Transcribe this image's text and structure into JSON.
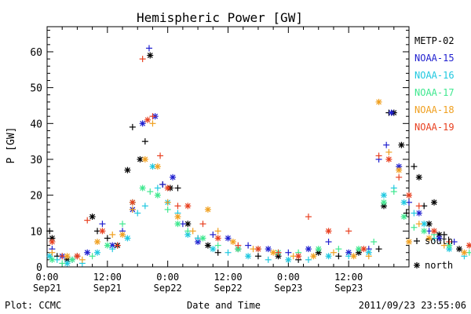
{
  "chart_data": {
    "type": "scatter",
    "title": "Hemispheric Power [GW]",
    "ylabel": "P [GW]",
    "xlabel": "Date and Time",
    "ylim": [
      0,
      67
    ],
    "yticks": [
      0,
      10,
      20,
      30,
      40,
      50,
      60
    ],
    "xlim": [
      "2011-09-21 00:00",
      "2011-09-23 23:00"
    ],
    "xticks": [
      {
        "time": "0:00",
        "date": "Sep21"
      },
      {
        "time": "12:00",
        "date": "Sep21"
      },
      {
        "time": "0:00",
        "date": "Sep22"
      },
      {
        "time": "12:00",
        "date": "Sep22"
      },
      {
        "time": "0:00",
        "date": "Sep23"
      },
      {
        "time": "12:00",
        "date": "Sep23"
      }
    ],
    "footer_left": "Plot: CCMC",
    "footer_right": "2011/09/23 23:55:06",
    "markers": [
      {
        "symbol": "+",
        "label": "south"
      },
      {
        "symbol": "*",
        "label": "north"
      }
    ],
    "series": [
      {
        "name": "METP-02",
        "color": "#000000",
        "points": [
          [
            0.5,
            10,
            "+"
          ],
          [
            1,
            8,
            "*"
          ],
          [
            2,
            3,
            "+"
          ],
          [
            4,
            2,
            "*"
          ],
          [
            6,
            3,
            "+"
          ],
          [
            9,
            14,
            "*"
          ],
          [
            10,
            10,
            "+"
          ],
          [
            12,
            8,
            "+"
          ],
          [
            14,
            6,
            "*"
          ],
          [
            16,
            27,
            "*"
          ],
          [
            17,
            39,
            "+"
          ],
          [
            18.5,
            30,
            "*"
          ],
          [
            19.5,
            35,
            "+"
          ],
          [
            20.5,
            59,
            "*"
          ],
          [
            23,
            23,
            "+"
          ],
          [
            24.5,
            22,
            "*"
          ],
          [
            26,
            22,
            "+"
          ],
          [
            28,
            12,
            "*"
          ],
          [
            30,
            8,
            "+"
          ],
          [
            32,
            6,
            "*"
          ],
          [
            34,
            4,
            "+"
          ],
          [
            38,
            5,
            "*"
          ],
          [
            42,
            3,
            "+"
          ],
          [
            46,
            3,
            "*"
          ],
          [
            50,
            2,
            "+"
          ],
          [
            54,
            4,
            "*"
          ],
          [
            58,
            3,
            "+"
          ],
          [
            62,
            4,
            "*"
          ],
          [
            66,
            5,
            "+"
          ],
          [
            67,
            17,
            "*"
          ],
          [
            68,
            43,
            "+"
          ],
          [
            69,
            43,
            "*"
          ],
          [
            70.5,
            34,
            "*"
          ],
          [
            71.5,
            15,
            "+"
          ],
          [
            73,
            28,
            "+"
          ],
          [
            74,
            25,
            "*"
          ],
          [
            75,
            17,
            "+"
          ],
          [
            76,
            12,
            "*"
          ],
          [
            77,
            18,
            "*"
          ],
          [
            78,
            9,
            "*"
          ],
          [
            79,
            9,
            "+"
          ],
          [
            82,
            5,
            "*"
          ],
          [
            86,
            3,
            "+"
          ],
          [
            90,
            3,
            "*"
          ],
          [
            94,
            4,
            "+"
          ],
          [
            98,
            4,
            "*"
          ],
          [
            102,
            6,
            "+"
          ],
          [
            104,
            3,
            "*"
          ],
          [
            108,
            4,
            "+"
          ],
          [
            110,
            5,
            "*"
          ]
        ]
      },
      {
        "name": "NOAA-15",
        "color": "#1f1fcf",
        "points": [
          [
            1,
            5,
            "+"
          ],
          [
            3,
            3,
            "*"
          ],
          [
            5,
            2,
            "+"
          ],
          [
            8,
            4,
            "*"
          ],
          [
            11,
            12,
            "+"
          ],
          [
            13,
            6,
            "*"
          ],
          [
            15,
            10,
            "+"
          ],
          [
            17,
            16,
            "*"
          ],
          [
            19,
            40,
            "*"
          ],
          [
            20.3,
            61,
            "+"
          ],
          [
            21.5,
            42,
            "*"
          ],
          [
            23,
            23,
            "+"
          ],
          [
            25,
            25,
            "*"
          ],
          [
            27,
            12,
            "+"
          ],
          [
            30,
            7,
            "*"
          ],
          [
            33,
            9,
            "+"
          ],
          [
            36,
            8,
            "*"
          ],
          [
            40,
            6,
            "+"
          ],
          [
            44,
            5,
            "*"
          ],
          [
            48,
            4,
            "+"
          ],
          [
            52,
            5,
            "*"
          ],
          [
            56,
            7,
            "+"
          ],
          [
            60,
            4,
            "*"
          ],
          [
            64,
            5,
            "+"
          ],
          [
            66,
            30,
            "+"
          ],
          [
            67.5,
            34,
            "+"
          ],
          [
            68.5,
            43,
            "*"
          ],
          [
            70,
            28,
            "*"
          ],
          [
            72,
            18,
            "+"
          ],
          [
            74,
            15,
            "*"
          ],
          [
            76,
            10,
            "+"
          ],
          [
            78,
            8,
            "*"
          ],
          [
            81,
            7,
            "+"
          ],
          [
            85,
            5,
            "*"
          ],
          [
            90,
            4,
            "+"
          ],
          [
            95,
            4,
            "*"
          ],
          [
            100,
            5,
            "+"
          ],
          [
            105,
            5,
            "*"
          ],
          [
            109,
            6,
            "+"
          ]
        ]
      },
      {
        "name": "NOAA-16",
        "color": "#1fc8e0",
        "points": [
          [
            0.5,
            3,
            "*"
          ],
          [
            2,
            2,
            "+"
          ],
          [
            4,
            1,
            "*"
          ],
          [
            7,
            1,
            "+"
          ],
          [
            10,
            4,
            "*"
          ],
          [
            13,
            5,
            "+"
          ],
          [
            16,
            8,
            "*"
          ],
          [
            18,
            15,
            "+"
          ],
          [
            19.5,
            17,
            "+"
          ],
          [
            21,
            28,
            "*"
          ],
          [
            22,
            22,
            "+"
          ],
          [
            24,
            18,
            "*"
          ],
          [
            26,
            15,
            "+"
          ],
          [
            28,
            9,
            "*"
          ],
          [
            30,
            8,
            "+"
          ],
          [
            33,
            5,
            "*"
          ],
          [
            36,
            4,
            "+"
          ],
          [
            40,
            3,
            "*"
          ],
          [
            44,
            2,
            "+"
          ],
          [
            48,
            2,
            "*"
          ],
          [
            52,
            2,
            "+"
          ],
          [
            56,
            3,
            "*"
          ],
          [
            60,
            3,
            "+"
          ],
          [
            64,
            4,
            "*"
          ],
          [
            67,
            20,
            "*"
          ],
          [
            69,
            22,
            "+"
          ],
          [
            71,
            18,
            "*"
          ],
          [
            73,
            15,
            "+"
          ],
          [
            75,
            12,
            "*"
          ],
          [
            77,
            8,
            "+"
          ],
          [
            80,
            5,
            "*"
          ],
          [
            83,
            3,
            "+"
          ],
          [
            87,
            2,
            "*"
          ],
          [
            91,
            2,
            "+"
          ],
          [
            95,
            2,
            "*"
          ],
          [
            99,
            2,
            "+"
          ],
          [
            103,
            3,
            "*"
          ],
          [
            106,
            3,
            "+"
          ],
          [
            109,
            5,
            "*"
          ]
        ]
      },
      {
        "name": "NOAA-17",
        "color": "#3fe88f",
        "points": [
          [
            1,
            2,
            "*"
          ],
          [
            3,
            1,
            "+"
          ],
          [
            5,
            2,
            "*"
          ],
          [
            9,
            3,
            "+"
          ],
          [
            12,
            6,
            "*"
          ],
          [
            15,
            12,
            "+"
          ],
          [
            17,
            18,
            "*"
          ],
          [
            19,
            22,
            "*"
          ],
          [
            20.5,
            21,
            "+"
          ],
          [
            22,
            20,
            "*"
          ],
          [
            24,
            16,
            "+"
          ],
          [
            26,
            12,
            "*"
          ],
          [
            28,
            10,
            "+"
          ],
          [
            31,
            8,
            "*"
          ],
          [
            34,
            6,
            "+"
          ],
          [
            38,
            5,
            "*"
          ],
          [
            42,
            5,
            "+"
          ],
          [
            46,
            4,
            "*"
          ],
          [
            50,
            4,
            "+"
          ],
          [
            54,
            5,
            "*"
          ],
          [
            58,
            5,
            "+"
          ],
          [
            62,
            5,
            "*"
          ],
          [
            65,
            7,
            "+"
          ],
          [
            67,
            18,
            "*"
          ],
          [
            69,
            21,
            "+"
          ],
          [
            71,
            14,
            "*"
          ],
          [
            73,
            11,
            "+"
          ],
          [
            75,
            10,
            "*"
          ],
          [
            77,
            9,
            "+"
          ],
          [
            80,
            6,
            "*"
          ],
          [
            84,
            4,
            "+"
          ],
          [
            88,
            2,
            "*"
          ],
          [
            92,
            3,
            "+"
          ],
          [
            96,
            3,
            "*"
          ],
          [
            100,
            4,
            "+"
          ],
          [
            104,
            6,
            "*"
          ],
          [
            108,
            7,
            "+"
          ]
        ]
      },
      {
        "name": "NOAA-18",
        "color": "#f0a020",
        "points": [
          [
            1,
            4,
            "+"
          ],
          [
            4,
            3,
            "*"
          ],
          [
            7,
            2,
            "+"
          ],
          [
            10,
            7,
            "*"
          ],
          [
            13,
            9,
            "+"
          ],
          [
            15,
            9,
            "*"
          ],
          [
            17,
            16,
            "+"
          ],
          [
            19.5,
            30,
            "*"
          ],
          [
            21,
            40,
            "+"
          ],
          [
            22,
            28,
            "*"
          ],
          [
            24,
            18,
            "+"
          ],
          [
            26,
            14,
            "*"
          ],
          [
            29,
            10,
            "+"
          ],
          [
            32,
            16,
            "*"
          ],
          [
            34,
            10,
            "+"
          ],
          [
            37,
            7,
            "*"
          ],
          [
            41,
            5,
            "+"
          ],
          [
            45,
            4,
            "*"
          ],
          [
            49,
            3,
            "+"
          ],
          [
            53,
            3,
            "*"
          ],
          [
            57,
            4,
            "+"
          ],
          [
            61,
            3,
            "*"
          ],
          [
            64,
            3,
            "+"
          ],
          [
            66,
            46,
            "*"
          ],
          [
            68,
            32,
            "+"
          ],
          [
            70,
            27,
            "*"
          ],
          [
            72,
            7,
            "*"
          ],
          [
            74,
            12,
            "+"
          ],
          [
            76,
            8,
            "*"
          ],
          [
            79,
            6,
            "+"
          ],
          [
            83,
            4,
            "*"
          ],
          [
            87,
            4,
            "+"
          ],
          [
            91,
            3,
            "*"
          ],
          [
            95,
            3,
            "+"
          ],
          [
            99,
            4,
            "*"
          ],
          [
            103,
            4,
            "+"
          ],
          [
            107,
            5,
            "*"
          ]
        ]
      },
      {
        "name": "NOAA-19",
        "color": "#e84020",
        "points": [
          [
            1,
            7,
            "*"
          ],
          [
            3,
            3,
            "+"
          ],
          [
            6,
            3,
            "*"
          ],
          [
            8,
            13,
            "+"
          ],
          [
            11,
            10,
            "*"
          ],
          [
            14,
            6,
            "+"
          ],
          [
            17,
            18,
            "*"
          ],
          [
            19,
            58,
            "+"
          ],
          [
            20,
            41,
            "*"
          ],
          [
            21,
            42,
            "+"
          ],
          [
            22.5,
            31,
            "+"
          ],
          [
            24,
            22,
            "*"
          ],
          [
            26,
            17,
            "+"
          ],
          [
            28,
            17,
            "*"
          ],
          [
            31,
            12,
            "+"
          ],
          [
            34,
            8,
            "*"
          ],
          [
            38,
            6,
            "+"
          ],
          [
            42,
            5,
            "*"
          ],
          [
            46,
            4,
            "+"
          ],
          [
            50,
            3,
            "*"
          ],
          [
            52,
            14,
            "+"
          ],
          [
            56,
            10,
            "*"
          ],
          [
            60,
            10,
            "+"
          ],
          [
            63,
            5,
            "*"
          ],
          [
            66,
            31,
            "+"
          ],
          [
            68,
            30,
            "*"
          ],
          [
            70,
            25,
            "+"
          ],
          [
            72,
            20,
            "*"
          ],
          [
            74,
            17,
            "+"
          ],
          [
            77,
            10,
            "*"
          ],
          [
            80,
            7,
            "+"
          ],
          [
            84,
            6,
            "*"
          ],
          [
            88,
            4,
            "+"
          ],
          [
            92,
            3,
            "*"
          ],
          [
            96,
            4,
            "+"
          ],
          [
            100,
            6,
            "*"
          ],
          [
            104,
            9,
            "*"
          ],
          [
            107,
            5,
            "+"
          ]
        ]
      }
    ]
  }
}
